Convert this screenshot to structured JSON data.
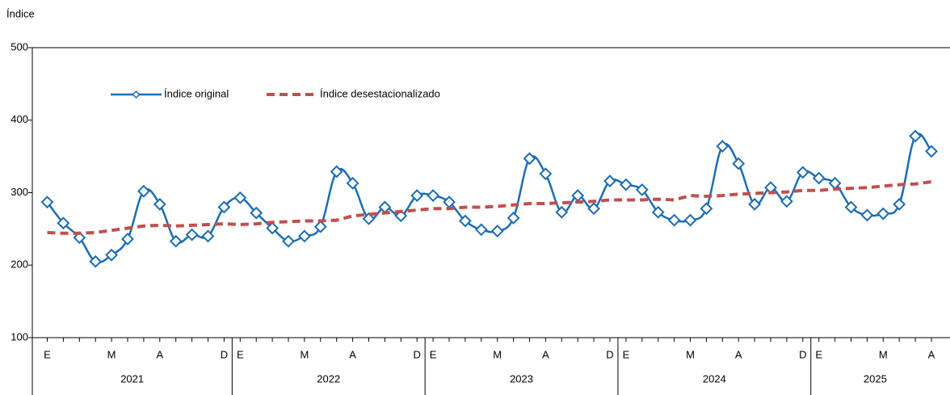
{
  "chart_data": {
    "type": "line",
    "y_label": "Índice",
    "categories": [
      "E",
      null,
      null,
      null,
      "M",
      null,
      null,
      "A",
      null,
      null,
      null,
      "D",
      "E",
      null,
      null,
      null,
      "M",
      null,
      null,
      "A",
      null,
      null,
      null,
      "D",
      "E",
      null,
      null,
      null,
      "M",
      null,
      null,
      "A",
      null,
      null,
      null,
      "D",
      "E",
      null,
      null,
      null,
      "M",
      null,
      null,
      "A",
      null,
      null,
      null,
      "D",
      "E",
      null,
      null,
      null,
      "M",
      null,
      null,
      "A"
    ],
    "years": [
      "2021",
      "2022",
      "2023",
      "2024",
      "2025"
    ],
    "ylim": [
      100,
      500
    ],
    "yticks": [
      100,
      200,
      300,
      400,
      500
    ],
    "grid": false,
    "series": [
      {
        "name": "Índice original",
        "color": "#1b6db5",
        "marker": "diamond",
        "dashed": false,
        "values": [
          287,
          258,
          238,
          205,
          214,
          236,
          302,
          284,
          233,
          242,
          240,
          280,
          293,
          272,
          251,
          233,
          240,
          253,
          329,
          313,
          264,
          280,
          268,
          296,
          296,
          287,
          261,
          249,
          247,
          265,
          347,
          326,
          273,
          296,
          278,
          316,
          311,
          304,
          273,
          262,
          262,
          278,
          364,
          340,
          284,
          307,
          288,
          328,
          320,
          313,
          280,
          269,
          271,
          284,
          378,
          357
        ]
      },
      {
        "name": "Índice desestacionalizado",
        "color": "#c0504d",
        "marker": "none",
        "dashed": true,
        "values": [
          245,
          244,
          244,
          245,
          248,
          251,
          254,
          255,
          254,
          255,
          256,
          257,
          256,
          257,
          259,
          260,
          261,
          261,
          262,
          268,
          270,
          272,
          274,
          276,
          278,
          278,
          280,
          280,
          281,
          283,
          285,
          285,
          286,
          287,
          288,
          290,
          290,
          290,
          291,
          290,
          296,
          295,
          296,
          298,
          299,
          300,
          301,
          303,
          303,
          305,
          306,
          307,
          309,
          311,
          312,
          315
        ]
      }
    ]
  }
}
